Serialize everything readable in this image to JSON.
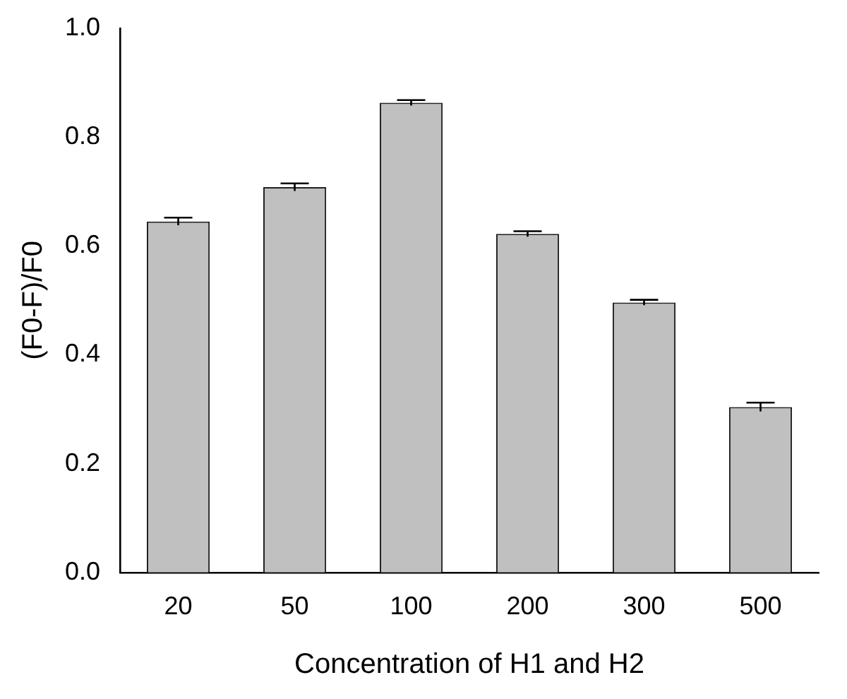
{
  "chart_data": {
    "type": "bar",
    "xlabel": "Concentration of H1 and H2",
    "ylabel": "(F0-F)/F0",
    "categories": [
      "20",
      "50",
      "100",
      "200",
      "300",
      "500"
    ],
    "values": [
      0.645,
      0.708,
      0.863,
      0.622,
      0.496,
      0.304
    ],
    "errors": [
      0.007,
      0.007,
      0.005,
      0.005,
      0.005,
      0.008
    ],
    "color": "#c0c0c0",
    "ylim": [
      0,
      1
    ],
    "yticks": [
      {
        "value": 0,
        "label": "0.0"
      },
      {
        "value": 0.2,
        "label": "0.2"
      },
      {
        "value": 0.4,
        "label": "0.4"
      },
      {
        "value": 0.6,
        "label": "0.6"
      },
      {
        "value": 0.8,
        "label": "0.8"
      },
      {
        "value": 1,
        "label": "1.0"
      }
    ],
    "grid": false,
    "legend": false
  }
}
